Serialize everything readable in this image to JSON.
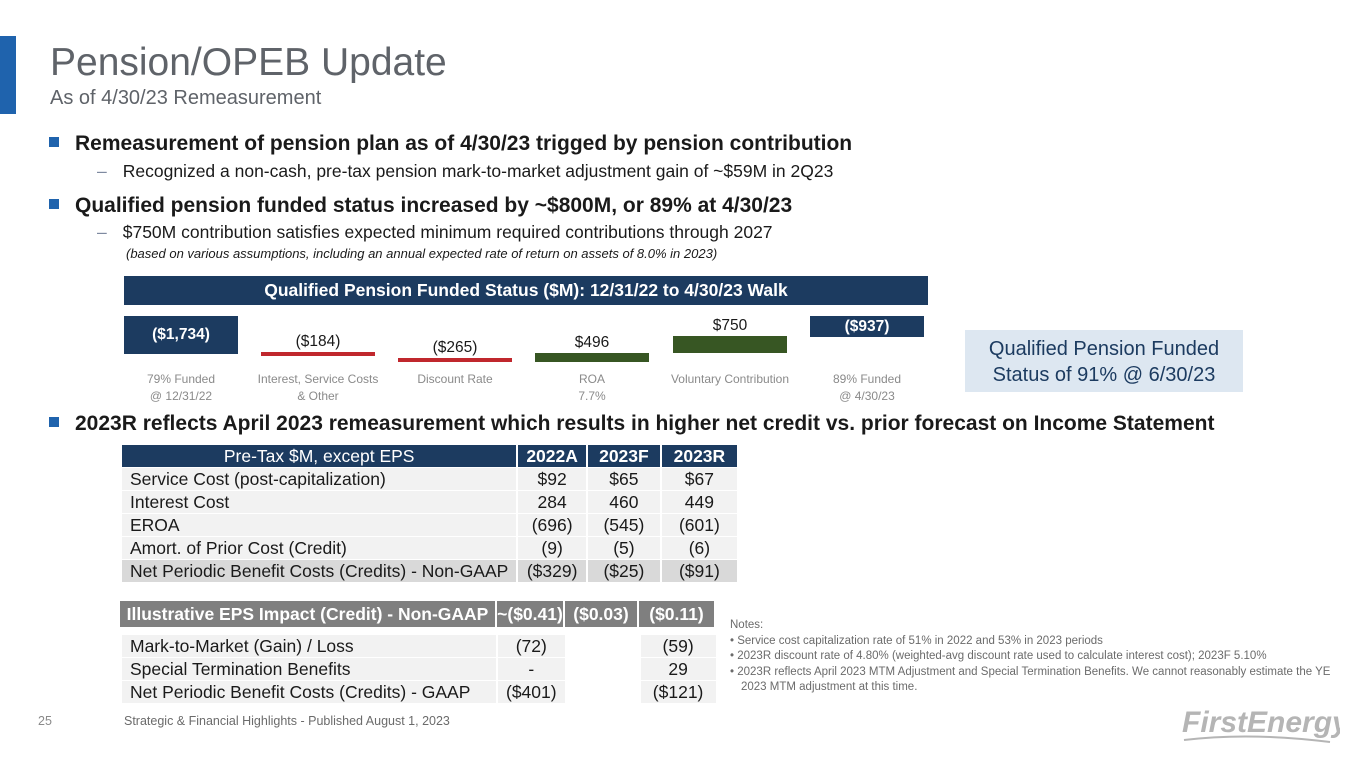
{
  "header": {
    "title": "Pension/OPEB Update",
    "subtitle": "As of 4/30/23 Remeasurement"
  },
  "bullets": [
    {
      "text": "Remeasurement of pension plan as of 4/30/23 trigged by pension contribution",
      "sub": "Recognized a non-cash, pre-tax pension mark-to-market adjustment gain of ~$59M in 2Q23"
    },
    {
      "text": "Qualified pension funded status increased by ~$800M, or 89% at 4/30/23",
      "sub": "$750M contribution satisfies expected minimum required contributions through 2027",
      "note": "(based on various assumptions, including an annual expected rate of return on assets of 8.0% in 2023)"
    },
    {
      "text": "2023R reflects April 2023 remeasurement which results in higher net credit vs. prior forecast on Income Statement"
    }
  ],
  "chart_data": {
    "type": "bar",
    "title": "Qualified Pension Funded Status ($M): 12/31/22 to 4/30/23 Walk",
    "categories": [
      "79% Funded\n@ 12/31/22",
      "Interest, Service Costs\n& Other",
      "Discount Rate",
      "ROA\n7.7%",
      "Voluntary Contribution",
      "89% Funded\n@ 4/30/23"
    ],
    "category_lines": [
      [
        "79% Funded",
        "@ 12/31/22"
      ],
      [
        "Interest, Service Costs",
        "& Other"
      ],
      [
        "Discount Rate"
      ],
      [
        "ROA",
        "7.7%"
      ],
      [
        "Voluntary Contribution"
      ],
      [
        "89% Funded",
        "@ 4/30/23"
      ]
    ],
    "values": [
      -1734,
      -184,
      -265,
      496,
      750,
      -937
    ],
    "labels": [
      "($1,734)",
      "($184)",
      "($265)",
      "$496",
      "$750",
      "($937)"
    ],
    "kinds": [
      "total",
      "delta",
      "delta",
      "delta",
      "delta",
      "total"
    ],
    "colors": {
      "total": "#1c3b60",
      "negative": "#c0272d",
      "positive": "#375623"
    }
  },
  "callout": {
    "line1": "Qualified Pension Funded",
    "line2": "Status of 91% @ 6/30/23"
  },
  "table": {
    "columns": [
      "Pre-Tax $M, except EPS",
      "2022A",
      "2023F",
      "2023R"
    ],
    "rows": [
      [
        "Service Cost (post-capitalization)",
        "$92",
        "$65",
        "$67"
      ],
      [
        "Interest Cost",
        "284",
        "460",
        "449"
      ],
      [
        "EROA",
        "(696)",
        "(545)",
        "(601)"
      ],
      [
        "Amort. of Prior Cost (Credit)",
        "(9)",
        "(5)",
        "(6)"
      ],
      [
        "Net Periodic Benefit Costs (Credits) - Non-GAAP",
        "($329)",
        "($25)",
        "($91)"
      ]
    ],
    "eps": [
      "Illustrative EPS Impact (Credit) - Non-GAAP",
      "~($0.41)",
      "($0.03)",
      "($0.11)"
    ],
    "gaap_rows": [
      [
        "Mark-to-Market (Gain) / Loss",
        "(72)",
        "",
        "(59)"
      ],
      [
        "Special Termination Benefits",
        "-",
        "",
        "29"
      ],
      [
        "Net Periodic Benefit Costs (Credits) - GAAP",
        "($401)",
        "",
        "($121)"
      ]
    ]
  },
  "notes": {
    "heading": "Notes:",
    "items": [
      "Service cost capitalization rate of 51% in 2022 and 53% in 2023 periods",
      "2023R discount rate of 4.80% (weighted-avg discount rate used to calculate interest cost); 2023F 5.10%",
      "2023R reflects April 2023 MTM Adjustment and Special Termination Benefits.  We cannot reasonably estimate the YE 2023 MTM adjustment at this time."
    ]
  },
  "footer": {
    "page": "25",
    "text": "Strategic & Financial Highlights - Published August 1, 2023",
    "logo": "FirstEnergy"
  },
  "bullet_char": "–"
}
